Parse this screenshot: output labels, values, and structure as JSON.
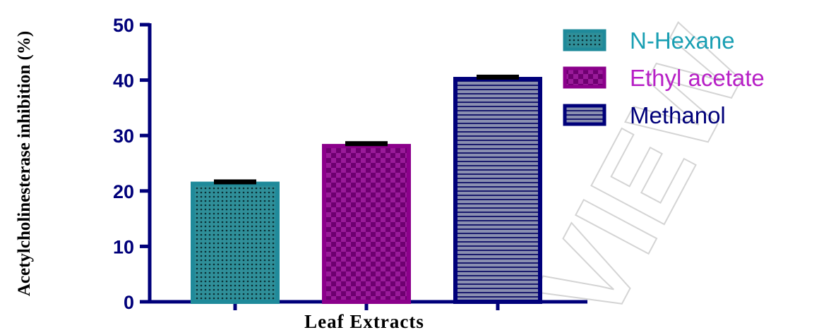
{
  "watermark": "VIEW",
  "chart_data": {
    "type": "bar",
    "categories": [
      "N-Hexane",
      "Ethyl acetate",
      "Methanol"
    ],
    "values": [
      21.3,
      28.1,
      40.2
    ],
    "errors": [
      0.4,
      0.5,
      0.4
    ],
    "colors": [
      "#1f8a9a",
      "#8b008b",
      "#00007a"
    ],
    "legend_text_colors": [
      "#1a9fb3",
      "#b71fc6",
      "#00007a"
    ],
    "legend_position": "top-right",
    "xlabel": "Leaf Extracts",
    "ylabel": "Acetylcholinesterase inhibition (%)",
    "ylim": [
      0,
      50
    ],
    "yticks": [
      "0",
      "10",
      "20",
      "30",
      "40",
      "50"
    ],
    "grid": false
  }
}
